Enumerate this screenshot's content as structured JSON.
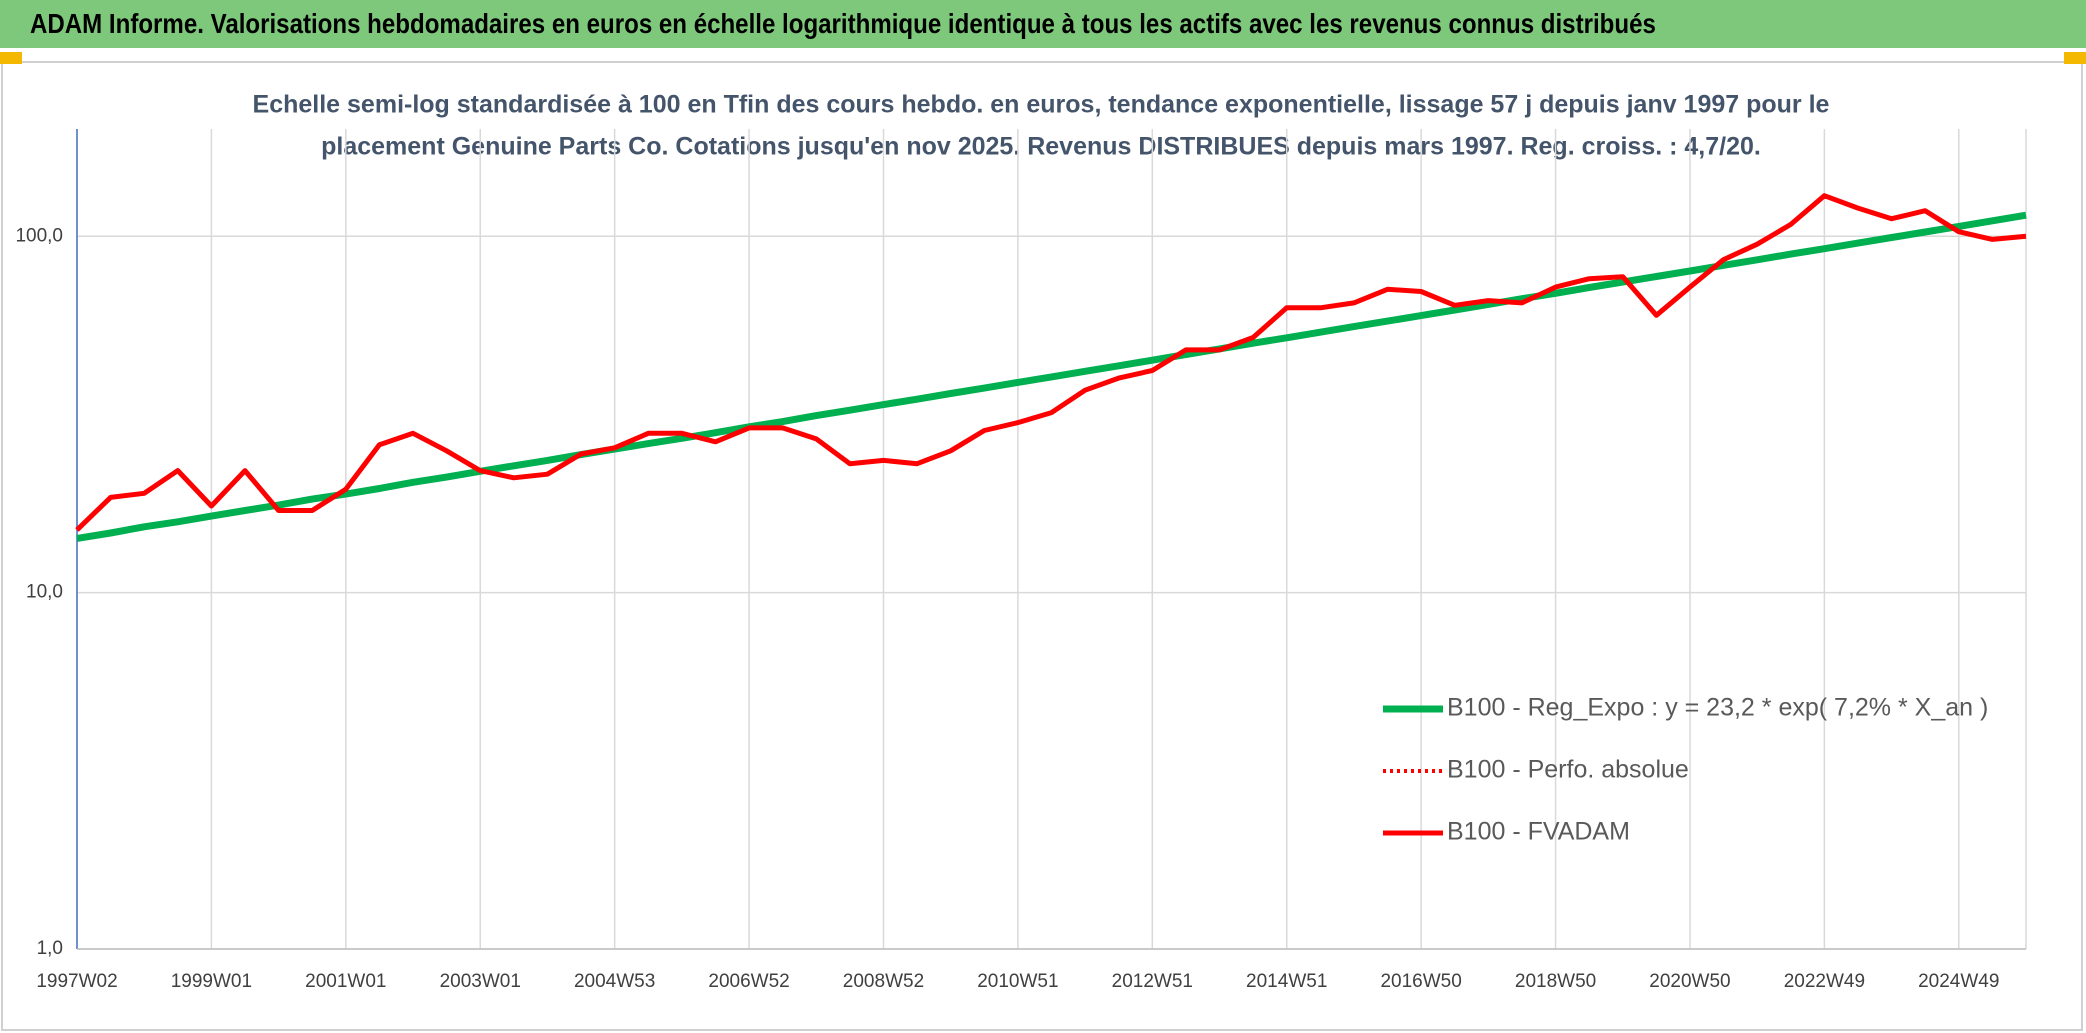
{
  "header": {
    "title": "ADAM Informe. Valorisations hebdomadaires en euros en échelle logarithmique identique à tous les actifs avec les revenus connus distribués"
  },
  "chart_data": {
    "type": "line",
    "subtitle": [
      "Echelle semi-log standardisée à 100 en Tfin des cours hebdo. en euros, tendance exponentielle, lissage 57 j depuis janv 1997 pour le",
      "placement Genuine Parts Co. Cotations jusqu'en nov 2025. Revenus DISTRIBUES depuis mars 1997. Reg. croiss. : 4,7/20."
    ],
    "categories": [
      "1997W02",
      null,
      null,
      null,
      "1999W01",
      null,
      null,
      null,
      "2001W01",
      null,
      null,
      null,
      "2003W01",
      null,
      null,
      null,
      "2004W53",
      null,
      null,
      null,
      "2006W52",
      null,
      null,
      null,
      "2008W52",
      null,
      null,
      null,
      "2010W51",
      null,
      null,
      null,
      "2012W51",
      null,
      null,
      null,
      "2014W51",
      null,
      null,
      null,
      "2016W50",
      null,
      null,
      null,
      "2018W50",
      null,
      null,
      null,
      "2020W50",
      null,
      null,
      null,
      "2022W49",
      null,
      null,
      null,
      "2024W49",
      null,
      null
    ],
    "series": [
      {
        "name": "B100 - Reg_Expo : y = 23,2 * exp( 7,2% *  X_an )",
        "color": "#00b050",
        "line_style": "solid",
        "values": [
          14.2,
          14.7,
          15.3,
          15.8,
          16.4,
          17.0,
          17.6,
          18.3,
          18.9,
          19.6,
          20.4,
          21.1,
          21.9,
          22.7,
          23.5,
          24.4,
          25.3,
          26.2,
          27.1,
          28.1,
          29.2,
          30.2,
          31.4,
          32.5,
          33.7,
          34.9,
          36.2,
          37.5,
          38.9,
          40.3,
          41.8,
          43.3,
          44.9,
          46.6,
          48.3,
          50.1,
          51.9,
          53.8,
          55.8,
          57.8,
          59.9,
          62.1,
          64.4,
          66.8,
          69.2,
          71.8,
          74.4,
          77.1,
          79.9,
          82.9,
          85.9,
          89.1,
          92.3,
          95.7,
          99.2,
          102.8,
          106.6,
          110.5,
          114.6
        ]
      },
      {
        "name": "B100 - Perfo. absolue",
        "color": "#ff0000",
        "line_style": "dotted",
        "values": [
          15,
          18.5,
          19,
          22,
          17.5,
          22,
          17,
          17,
          19.5,
          26,
          28,
          25,
          22,
          21,
          21.5,
          24.5,
          25.5,
          28,
          28,
          26.5,
          29,
          29,
          27,
          23,
          23.5,
          23,
          25,
          28.5,
          30,
          32,
          37,
          40,
          42,
          48,
          48,
          52,
          63,
          63,
          65,
          71,
          70,
          64,
          66,
          65,
          72,
          76,
          77,
          60,
          72,
          86,
          95,
          108,
          130,
          120,
          112,
          118,
          103,
          98,
          100
        ]
      },
      {
        "name": "B100 - FVADAM",
        "color": "#ff0000",
        "line_style": "solid",
        "values": [
          15,
          18.5,
          19,
          22,
          17.5,
          22,
          17,
          17,
          19.5,
          26,
          28,
          25,
          22,
          21,
          21.5,
          24.5,
          25.5,
          28,
          28,
          26.5,
          29,
          29,
          27,
          23,
          23.5,
          23,
          25,
          28.5,
          30,
          32,
          37,
          40,
          42,
          48,
          48,
          52,
          63,
          63,
          65,
          71,
          70,
          64,
          66,
          65,
          72,
          76,
          77,
          60,
          72,
          86,
          95,
          108,
          130,
          120,
          112,
          118,
          103,
          98,
          100
        ]
      }
    ],
    "log_scale": true,
    "ylim": [
      1,
      200
    ],
    "yticks": [
      {
        "value": 1,
        "label": "1,0"
      },
      {
        "value": 10,
        "label": "10,0"
      },
      {
        "value": 100,
        "label": "100,0"
      }
    ],
    "grid": true,
    "legend": "right"
  }
}
